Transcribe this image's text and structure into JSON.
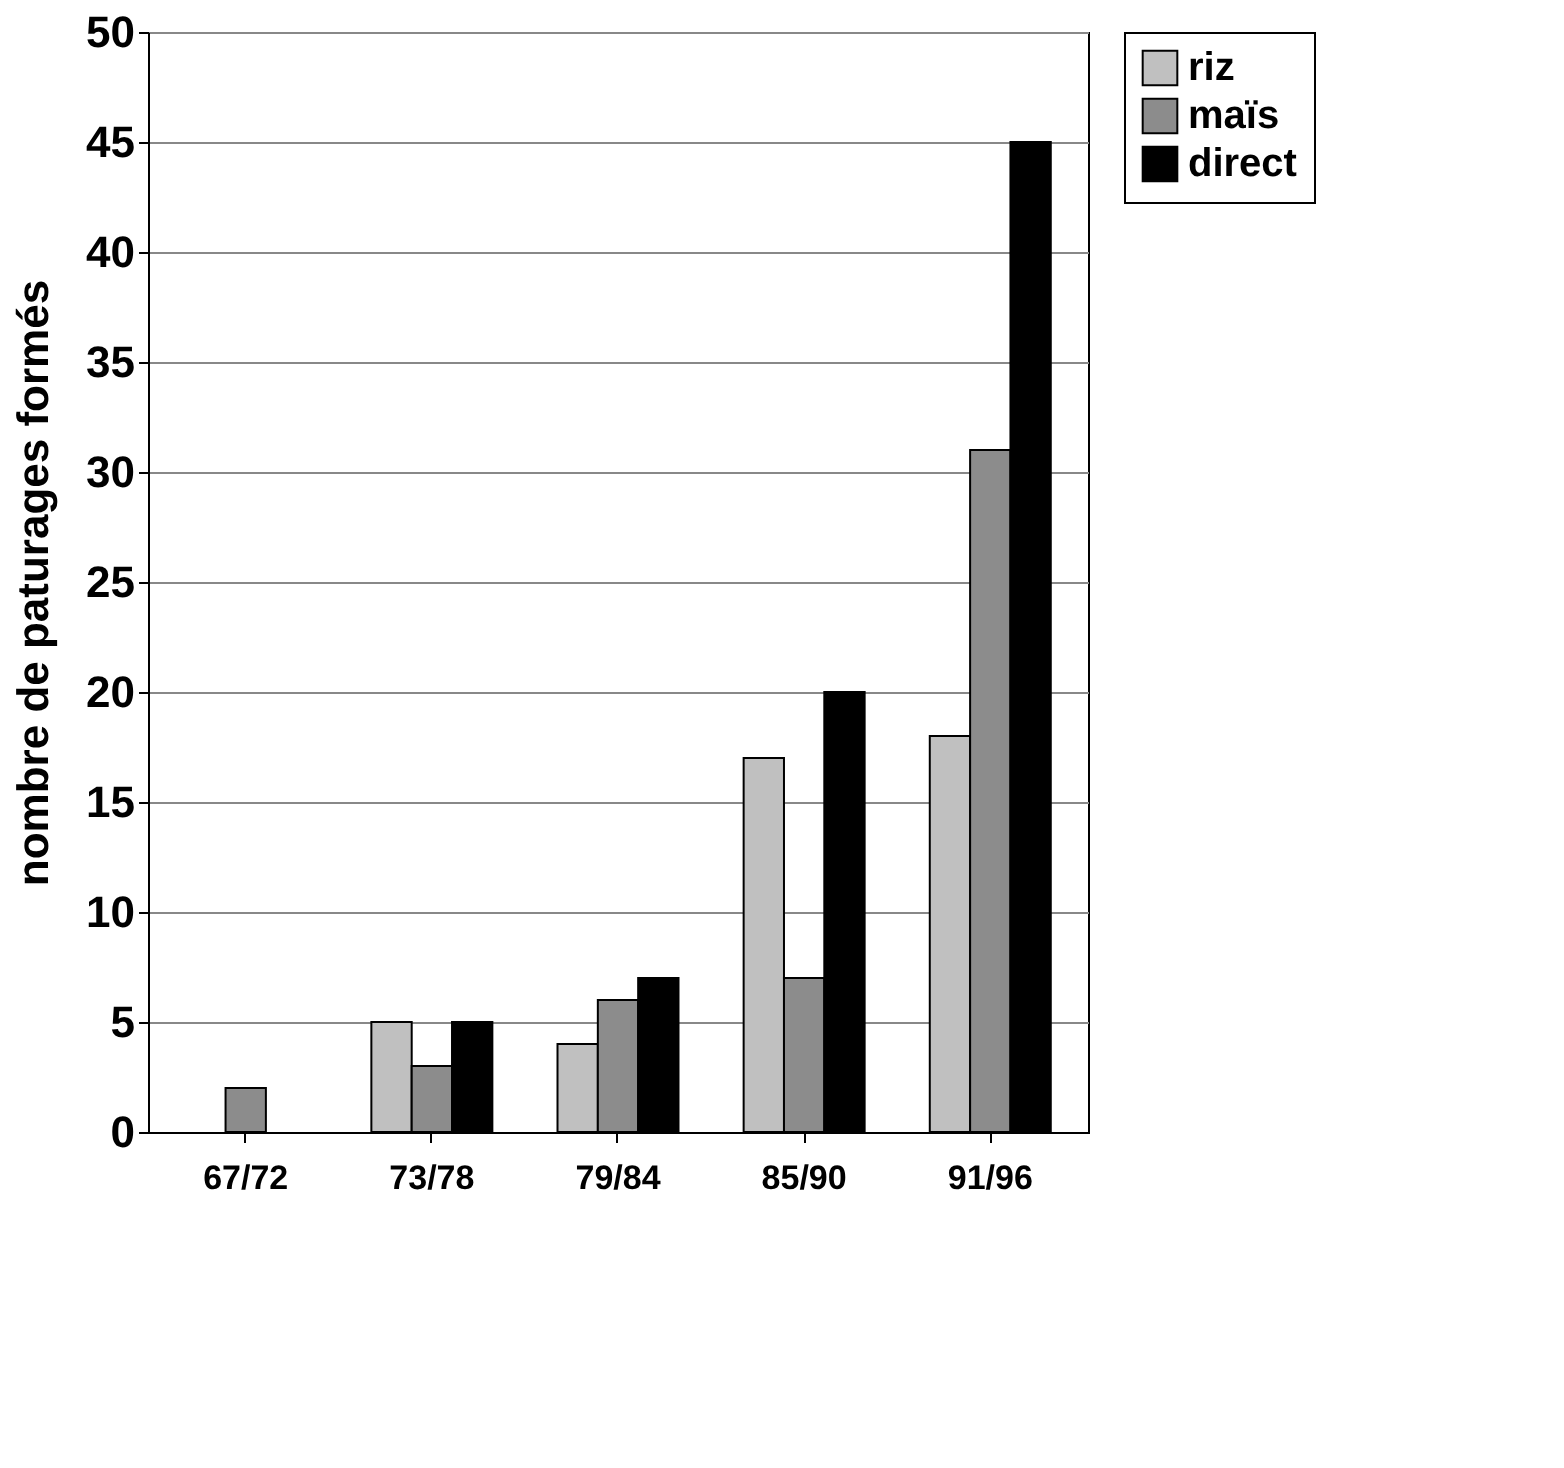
{
  "chart_data": {
    "type": "bar",
    "ylabel": "nombre de paturages formés",
    "categories": [
      "67/72",
      "73/78",
      "79/84",
      "85/90",
      "91/96"
    ],
    "series": [
      {
        "name": "riz",
        "color": "#c0c0c0",
        "values": [
          null,
          5,
          4,
          17,
          18
        ]
      },
      {
        "name": "maïs",
        "color": "#8c8c8c",
        "values": [
          2,
          3,
          6,
          7,
          31
        ]
      },
      {
        "name": "direct",
        "color": "#000000",
        "values": [
          null,
          5,
          7,
          20,
          45
        ]
      }
    ],
    "ylim": [
      0,
      50
    ],
    "yticks": [
      0,
      5,
      10,
      15,
      20,
      25,
      30,
      35,
      40,
      45,
      50
    ],
    "grid": "y",
    "legend": "right"
  }
}
